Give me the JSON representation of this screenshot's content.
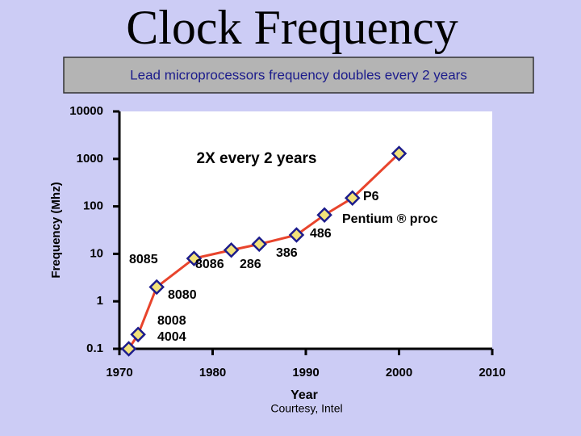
{
  "chart_data": {
    "type": "line",
    "title": "Clock Frequency",
    "subtitle": "Lead microprocessors frequency doubles every 2 years",
    "x_label": "Year",
    "y_label": "Frequency (Mhz)",
    "source": "Courtesy, Intel",
    "x": [
      1971,
      1972,
      1974,
      1978,
      1982,
      1985,
      1989,
      1992,
      1995,
      2000
    ],
    "series": [
      {
        "color": "#e8442c",
        "marker_color": "#f2e27a",
        "values": [
          0.1,
          0.2,
          2,
          8,
          12,
          16,
          25,
          66,
          150,
          1300
        ]
      }
    ],
    "xlim": [
      1970,
      2010
    ],
    "xticks": [
      1970,
      1980,
      1990,
      2000,
      2010
    ],
    "ylim": [
      0.1,
      10000
    ],
    "yticks": [
      0.1,
      1,
      10,
      100,
      1000,
      10000
    ],
    "log_y": true,
    "grid": false,
    "annotations": [
      "2X every 2 years",
      "P6",
      "Pentium ® proc",
      "486",
      "386",
      "286",
      "8086",
      "8085",
      "8080",
      "8008",
      "4004"
    ]
  }
}
